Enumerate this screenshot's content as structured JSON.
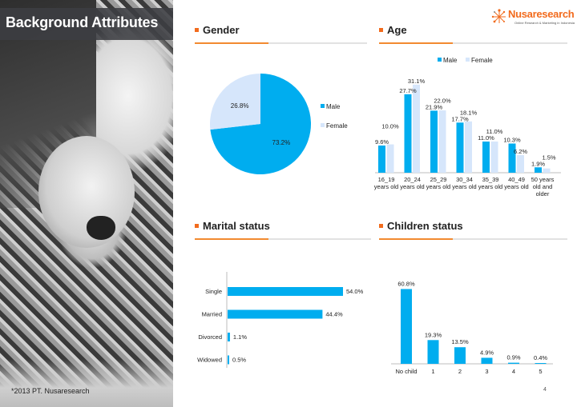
{
  "slide": {
    "title": "Background Attributes",
    "footer": "*2013 PT. Nusaresearch",
    "page_number": "4",
    "logo": {
      "name": "Nusaresearch",
      "tagline": "Online Research & Marketing in Indonesia"
    },
    "accent_color": "#f26b1d",
    "male_color": "#00adef",
    "female_color": "#d6e6fb"
  },
  "sections": {
    "gender": "Gender",
    "age": "Age",
    "marital": "Marital status",
    "children": "Children status"
  },
  "chart_data": [
    {
      "id": "gender",
      "type": "pie",
      "title": "Gender",
      "categories": [
        "Male",
        "Female"
      ],
      "values": [
        73.2,
        26.8
      ],
      "labels": [
        "73.2%",
        "26.8%"
      ],
      "legend": [
        "Male",
        "Female"
      ],
      "legend_position": "right"
    },
    {
      "id": "age",
      "type": "bar",
      "title": "Age",
      "categories": [
        [
          "16_19",
          "years old"
        ],
        [
          "20_24",
          "years old"
        ],
        [
          "25_29",
          "years old"
        ],
        [
          "30_34",
          "years old"
        ],
        [
          "35_39",
          "years old"
        ],
        [
          "40_49",
          "years old"
        ],
        [
          "50 years",
          "old and",
          "older"
        ]
      ],
      "series": [
        {
          "name": "Male",
          "values": [
            9.6,
            27.7,
            21.9,
            17.7,
            11.0,
            10.3,
            1.9
          ],
          "labels": [
            "9.6%",
            "27.7%",
            "21.9%",
            "17.7%",
            "11.0%",
            "10.3%",
            "1.9%"
          ]
        },
        {
          "name": "Female",
          "values": [
            10.0,
            31.1,
            22.0,
            18.1,
            11.0,
            6.2,
            1.5
          ],
          "labels": [
            "10.0%",
            "31.1%",
            "22.0%",
            "18.1%",
            "11.0%",
            "6.2%",
            "1.5%"
          ]
        }
      ],
      "legend": [
        "Male",
        "Female"
      ],
      "legend_position": "top",
      "ylim": [
        0,
        35
      ],
      "grid": false
    },
    {
      "id": "marital",
      "type": "bar",
      "orientation": "horizontal",
      "title": "Marital status",
      "categories": [
        "Single",
        "Married",
        "Divorced",
        "Widowed"
      ],
      "values": [
        54.0,
        44.4,
        1.1,
        0.5
      ],
      "labels": [
        "54.0%",
        "44.4%",
        "1.1%",
        "0.5%"
      ],
      "xlim": [
        0,
        60
      ],
      "grid": false
    },
    {
      "id": "children",
      "type": "bar",
      "title": "Children status",
      "categories": [
        "No child",
        "1",
        "2",
        "3",
        "4",
        "5"
      ],
      "values": [
        60.8,
        19.3,
        13.5,
        4.9,
        0.9,
        0.4
      ],
      "labels": [
        "60.8%",
        "19.3%",
        "13.5%",
        "4.9%",
        "0.9%",
        "0.4%"
      ],
      "ylim": [
        0,
        65
      ],
      "grid": false
    }
  ]
}
